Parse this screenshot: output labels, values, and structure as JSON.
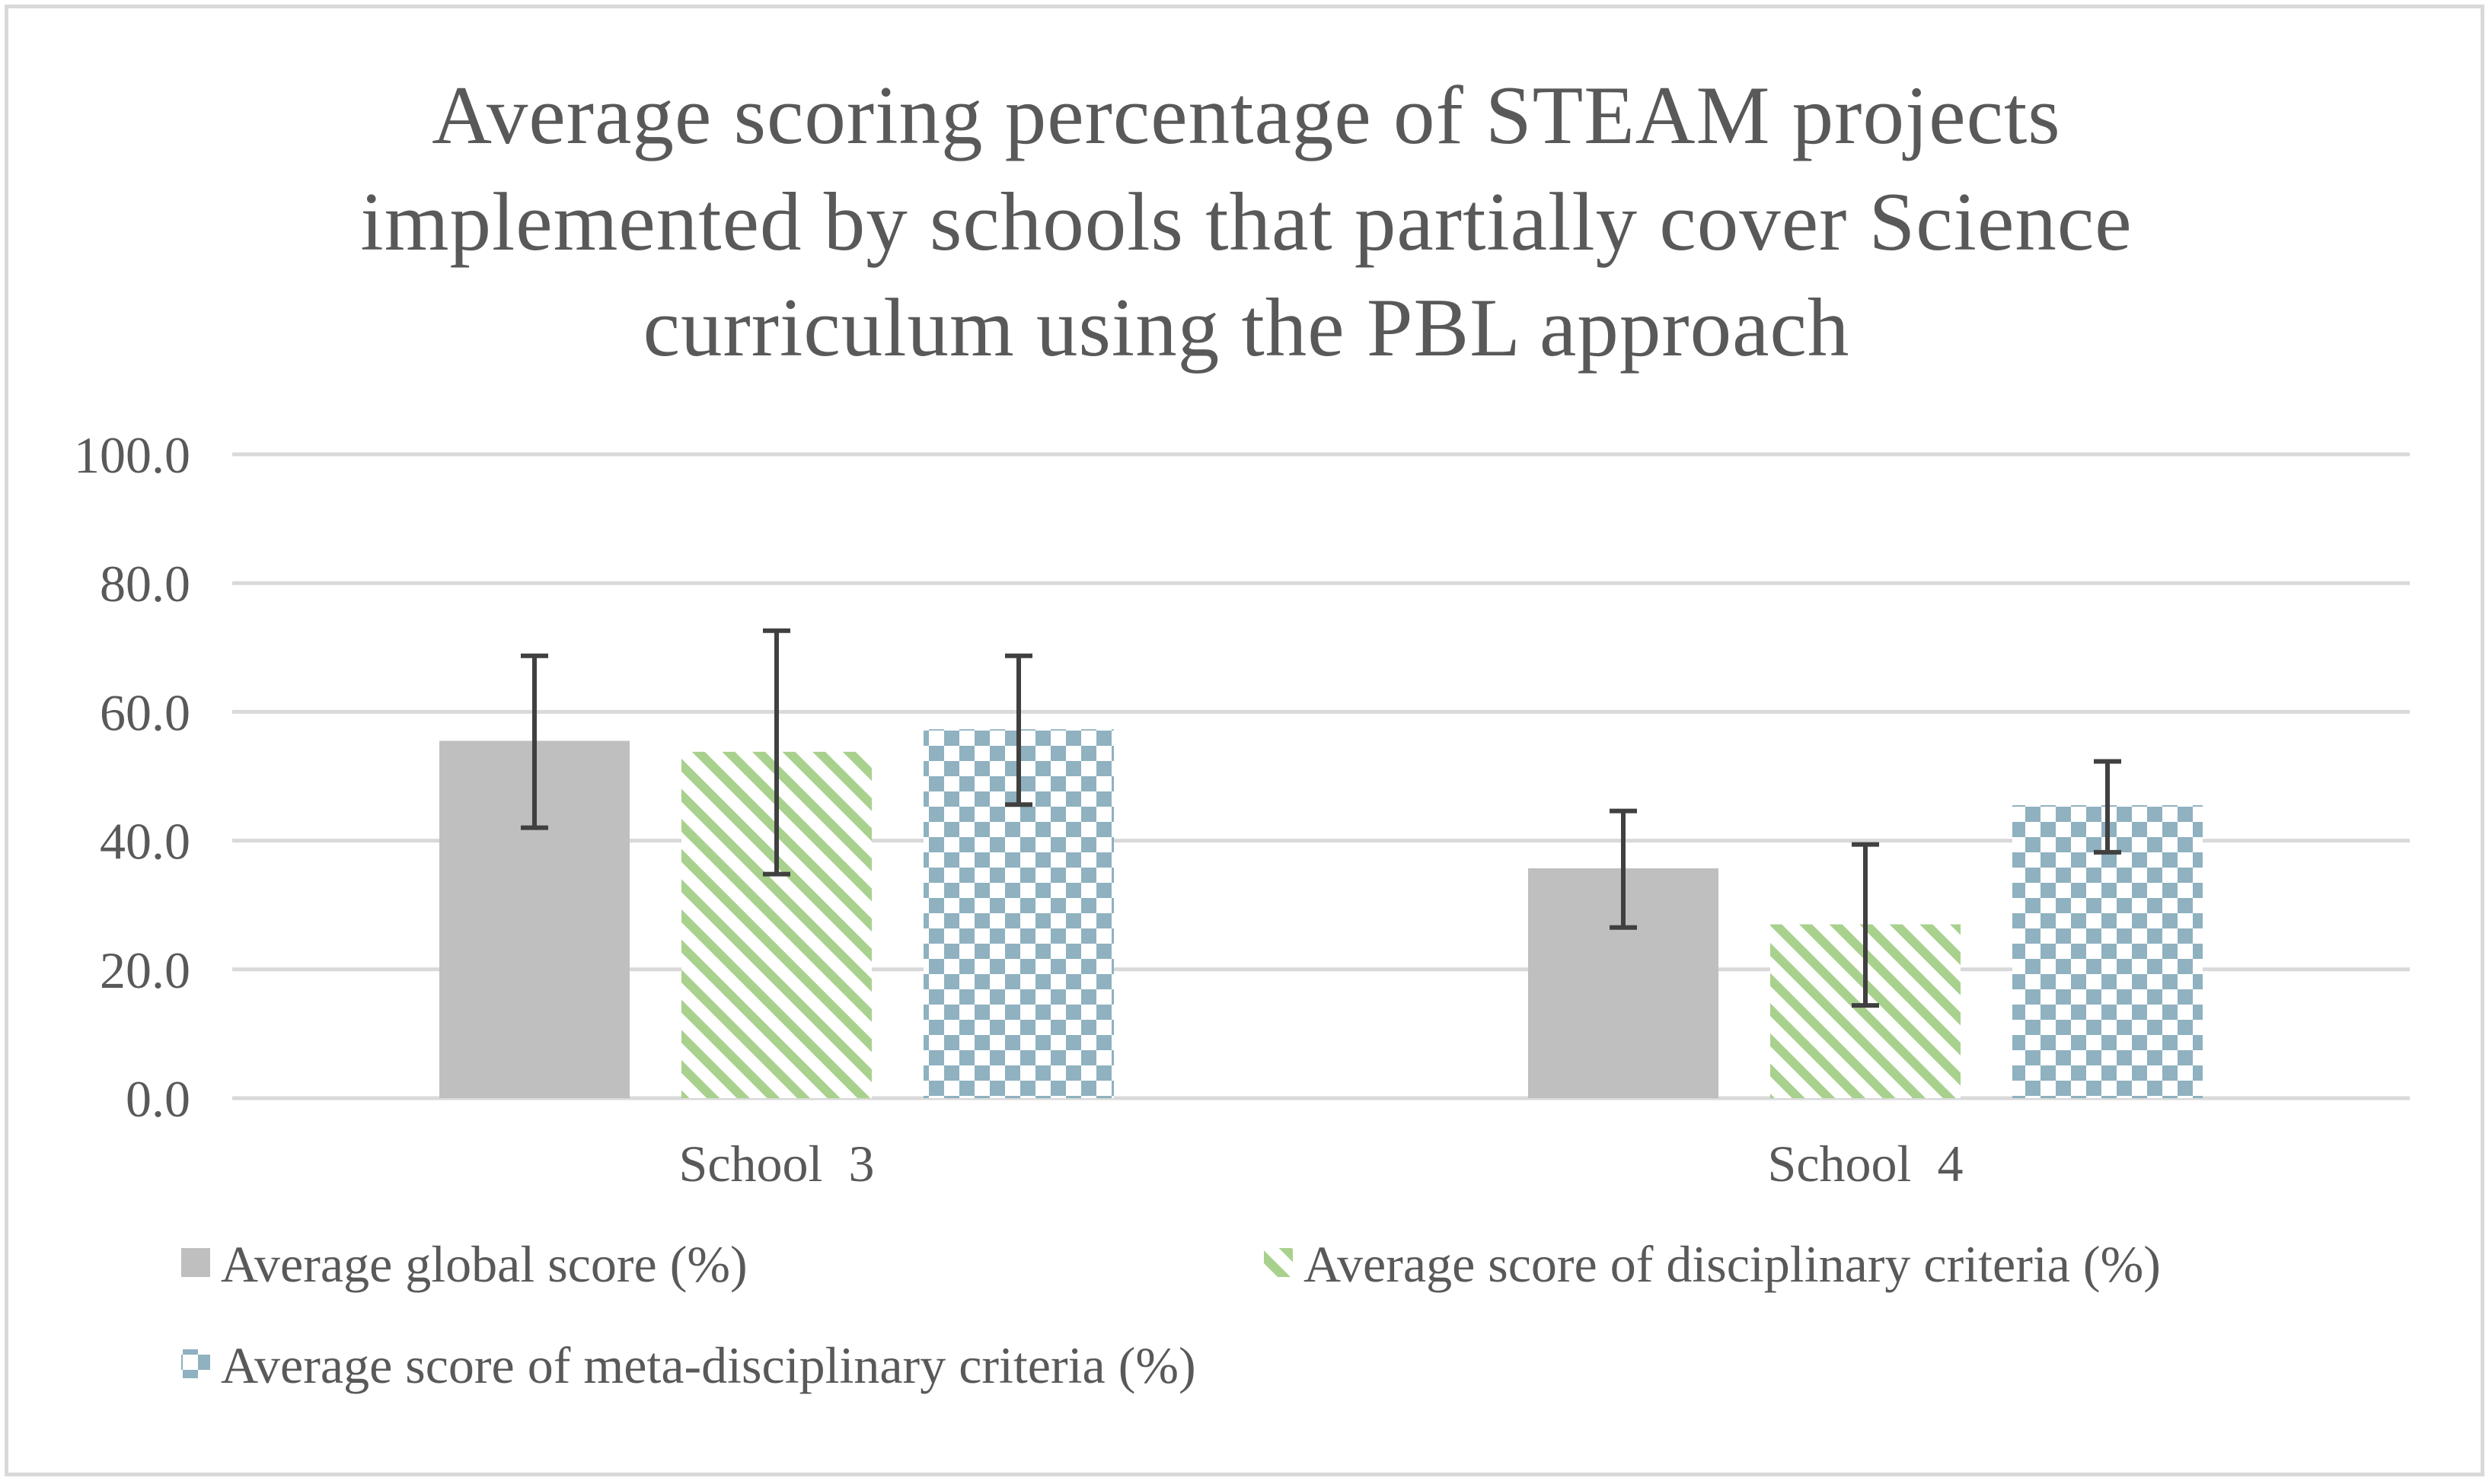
{
  "chart_data": {
    "type": "bar",
    "title_lines": [
      "Average scoring percentage of STEAM projects",
      "implemented by schools that partially cover Science",
      "curriculum using the PBL approach"
    ],
    "categories": [
      "School  3",
      "School  4"
    ],
    "ylim": [
      0,
      100
    ],
    "ytick_values": [
      0,
      20,
      40,
      60,
      80,
      100
    ],
    "ytick_labels": [
      "0.0",
      "20.0",
      "40.0",
      "60.0",
      "80.0",
      "100.0"
    ],
    "grid": true,
    "legend_position": "bottom",
    "series": [
      {
        "name": "Average global score (%)",
        "pattern": "solid",
        "color": "#bfbfbf",
        "values": [
          55.5,
          35.7
        ],
        "error_low": [
          42.0,
          26.5
        ],
        "error_high": [
          68.7,
          44.6
        ]
      },
      {
        "name": "Average score of disciplinary criteria (%)",
        "pattern": "diagonal-stripes",
        "color": "#a9d18e",
        "values": [
          53.8,
          27.0
        ],
        "error_low": [
          34.8,
          14.4
        ],
        "error_high": [
          72.6,
          39.4
        ]
      },
      {
        "name": "Average score of meta-disciplinary criteria (%)",
        "pattern": "checkerboard",
        "color": "#8fb1c0",
        "values": [
          57.3,
          45.5
        ],
        "error_low": [
          45.6,
          38.2
        ],
        "error_high": [
          68.7,
          52.3
        ]
      }
    ]
  }
}
